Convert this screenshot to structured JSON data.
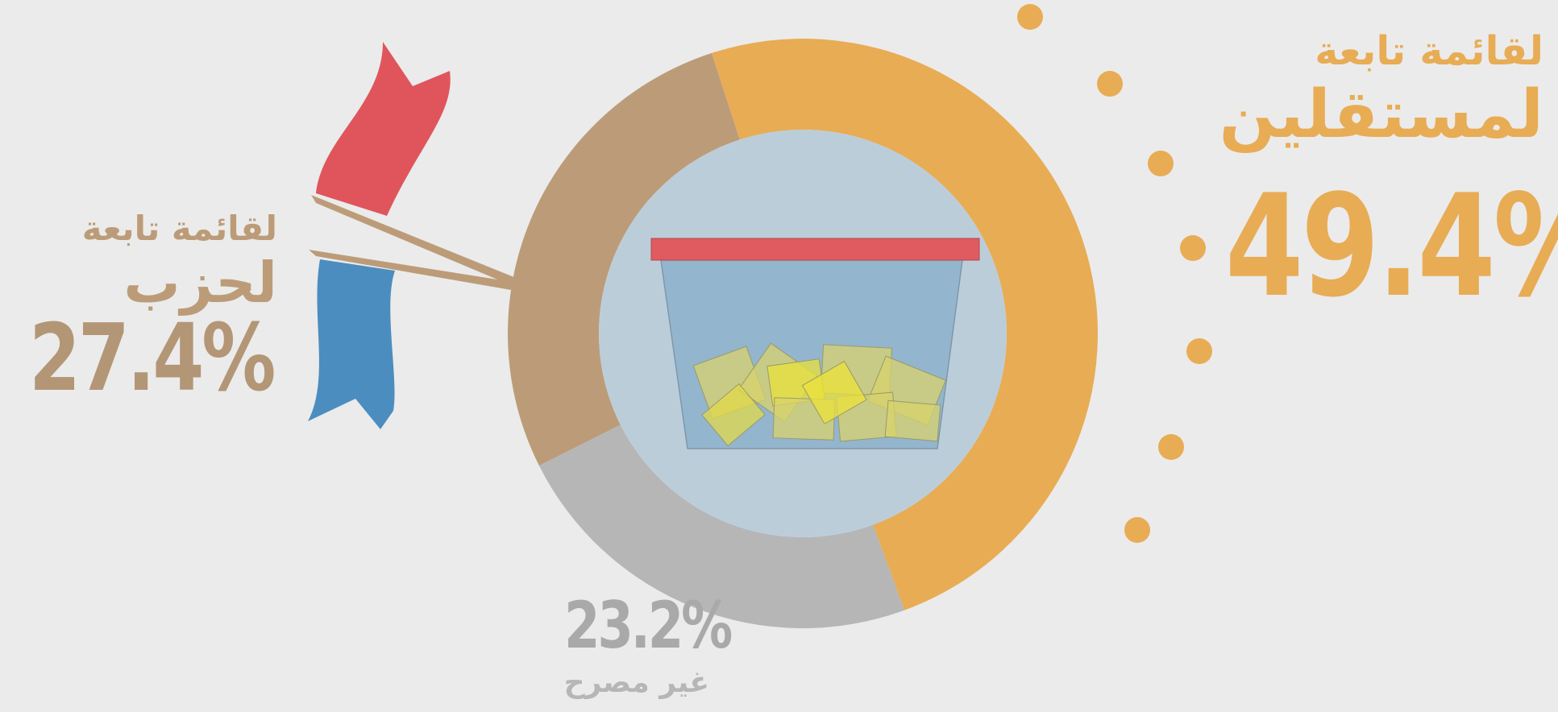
{
  "chart_data": {
    "type": "pie",
    "categories": [
      "لقائمة تابعة لمستقلين",
      "غير مصرح",
      "لقائمة تابعة لحزب"
    ],
    "values": [
      49.4,
      23.2,
      27.4
    ],
    "value_labels": [
      "49.4%",
      "23.2%",
      "27.4%"
    ],
    "colors": [
      "#e8ac55",
      "#b6b6b6",
      "#bc9c78"
    ],
    "donut": true
  }
}
